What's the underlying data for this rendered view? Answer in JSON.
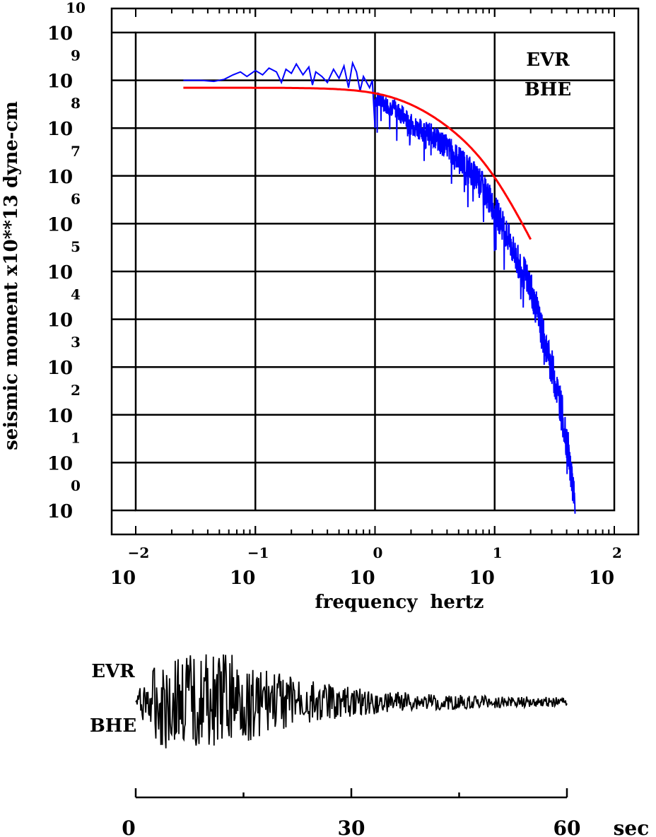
{
  "chart_data": [
    {
      "type": "line",
      "title": "",
      "station": "EVR",
      "component": "BHE",
      "ylabel": "seismic moment x10**13 dyne-cm",
      "xlabel": "frequency  hertz",
      "x_scale": "log",
      "y_scale": "log",
      "xlim": [
        0.01,
        100
      ],
      "ylim": [
        1,
        10000000000
      ],
      "x_ticks": [
        {
          "base": "10",
          "exp": "−2",
          "value": 0.01
        },
        {
          "base": "10",
          "exp": "−1",
          "value": 0.1
        },
        {
          "base": "10",
          "exp": "0",
          "value": 1
        },
        {
          "base": "10",
          "exp": "1",
          "value": 10
        },
        {
          "base": "10",
          "exp": "2",
          "value": 100
        }
      ],
      "y_ticks": [
        {
          "base": "10",
          "exp": "0",
          "value": 1
        },
        {
          "base": "10",
          "exp": "1",
          "value": 10
        },
        {
          "base": "10",
          "exp": "2",
          "value": 100
        },
        {
          "base": "10",
          "exp": "3",
          "value": 1000
        },
        {
          "base": "10",
          "exp": "4",
          "value": 10000
        },
        {
          "base": "10",
          "exp": "5",
          "value": 100000
        },
        {
          "base": "10",
          "exp": "6",
          "value": 1000000
        },
        {
          "base": "10",
          "exp": "7",
          "value": 10000000
        },
        {
          "base": "10",
          "exp": "8",
          "value": 100000000
        },
        {
          "base": "10",
          "exp": "9",
          "value": 1000000000
        },
        {
          "base": "10",
          "exp": "10",
          "value": 10000000000
        }
      ],
      "grid": true,
      "series": [
        {
          "kind": "spectrum",
          "color": "#0000ff",
          "points": [
            [
              0.025,
              1000000000
            ],
            [
              0.035,
              1000000000
            ],
            [
              0.045,
              950000000
            ],
            [
              0.055,
              1050000000
            ],
            [
              0.065,
              1300000000
            ],
            [
              0.075,
              1500000000
            ],
            [
              0.085,
              1200000000
            ],
            [
              0.1,
              1600000000
            ],
            [
              0.115,
              1300000000
            ],
            [
              0.13,
              1800000000
            ],
            [
              0.15,
              1500000000
            ],
            [
              0.165,
              900000000
            ],
            [
              0.18,
              1700000000
            ],
            [
              0.2,
              1400000000
            ],
            [
              0.22,
              2200000000
            ],
            [
              0.25,
              1300000000
            ],
            [
              0.28,
              1900000000
            ],
            [
              0.3,
              800000000
            ],
            [
              0.32,
              1500000000
            ],
            [
              0.36,
              1200000000
            ],
            [
              0.4,
              900000000
            ],
            [
              0.45,
              1700000000
            ],
            [
              0.5,
              1100000000
            ],
            [
              0.55,
              2000000000
            ],
            [
              0.6,
              700000000
            ],
            [
              0.65,
              2300000000
            ],
            [
              0.7,
              1500000000
            ],
            [
              0.75,
              600000000
            ],
            [
              0.8,
              1200000000
            ],
            [
              0.9,
              700000000
            ],
            [
              0.95,
              1000000000
            ],
            [
              1.0,
              100000000
            ]
          ],
          "decay": [
            [
              1.0,
              400000000
            ],
            [
              1.5,
              250000000
            ],
            [
              2.0,
              120000000
            ],
            [
              3.0,
              70000000
            ],
            [
              4.0,
              40000000
            ],
            [
              6.0,
              15000000
            ],
            [
              8.0,
              6000000
            ],
            [
              10.0,
              2000000
            ],
            [
              12.0,
              800000
            ],
            [
              15.0,
              200000
            ],
            [
              20.0,
              50000
            ],
            [
              25.0,
              5000
            ],
            [
              30.0,
              1000
            ],
            [
              35.0,
              200
            ],
            [
              40.0,
              30
            ],
            [
              45.0,
              3
            ],
            [
              47.0,
              1
            ]
          ]
        },
        {
          "kind": "model-fit",
          "color": "#ff0000",
          "corner_frequency": 1.8,
          "plateau": 700000000,
          "x_range": [
            0.025,
            20
          ]
        }
      ]
    },
    {
      "type": "line",
      "station": "EVR",
      "component": "BHE",
      "xlabel": "sec",
      "x_ticks": [
        "0",
        "30",
        "60"
      ],
      "xlim": [
        0,
        60
      ],
      "color": "#000000",
      "duration_sec": 60
    }
  ]
}
